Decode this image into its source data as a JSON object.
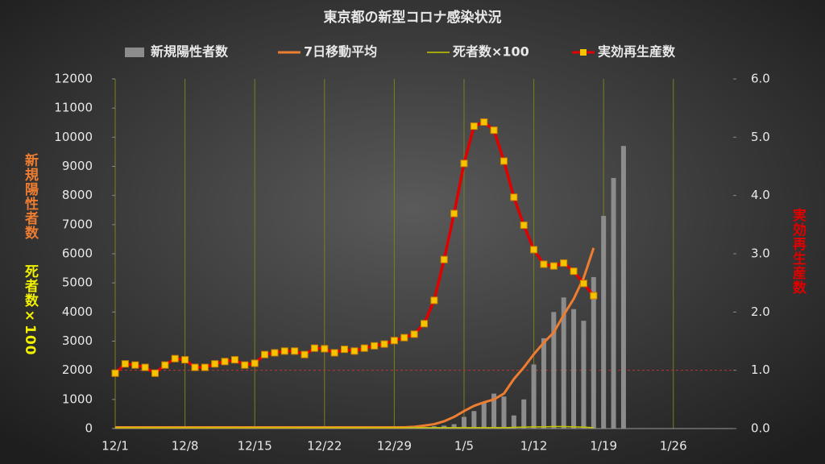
{
  "chart_data": {
    "type": "combo",
    "title": "東京都の新型コロナ感染状況",
    "y_label": "新規陽性者数",
    "y_label_2": "死者数×100",
    "y2_label": "実効再生産数",
    "categories": [
      "12/1",
      null,
      null,
      null,
      null,
      null,
      null,
      "12/8",
      null,
      null,
      null,
      null,
      null,
      null,
      "12/15",
      null,
      null,
      null,
      null,
      null,
      null,
      "12/22",
      null,
      null,
      null,
      null,
      null,
      null,
      "12/29",
      null,
      null,
      null,
      null,
      null,
      null,
      "1/5",
      null,
      null,
      null,
      null,
      null,
      null,
      "1/12",
      null,
      null,
      null,
      null,
      null,
      null,
      "1/19",
      null,
      null,
      null,
      null,
      null,
      null,
      "1/26",
      null,
      null,
      null,
      null,
      null
    ],
    "ylim": [
      0,
      12000
    ],
    "yticks": [
      0,
      1000,
      2000,
      3000,
      4000,
      5000,
      6000,
      7000,
      8000,
      9000,
      10000,
      11000,
      12000
    ],
    "y2lim": [
      0,
      6
    ],
    "y2ticks": [
      {
        "value": 0,
        "label": "0.0"
      },
      {
        "value": 1,
        "label": "1.0"
      },
      {
        "value": 2,
        "label": "2.0"
      },
      {
        "value": 3,
        "label": "3.0"
      },
      {
        "value": 4,
        "label": "4.0"
      },
      {
        "value": 5,
        "label": "5.0"
      },
      {
        "value": 6,
        "label": "6.0"
      }
    ],
    "y2_reference": 1,
    "grid": true,
    "series": [
      {
        "name": "新規陽性者数",
        "type": "bar",
        "color": "#8c8c8c",
        "values": [
          20,
          20,
          20,
          20,
          20,
          20,
          20,
          20,
          20,
          20,
          20,
          20,
          20,
          20,
          20,
          20,
          20,
          20,
          20,
          20,
          20,
          20,
          20,
          20,
          20,
          20,
          20,
          20,
          20,
          20,
          30,
          50,
          80,
          100,
          150,
          400,
          600,
          900,
          1200,
          1100,
          450,
          1000,
          2200,
          3100,
          4000,
          4500,
          4100,
          3700,
          5200,
          7300,
          8600,
          9700,
          null,
          null,
          null,
          null,
          null,
          null,
          null,
          null,
          null,
          null
        ]
      },
      {
        "name": "7日移動平均",
        "type": "line",
        "color": "#ed7d31",
        "values": [
          40,
          40,
          40,
          40,
          40,
          40,
          40,
          40,
          40,
          40,
          40,
          40,
          40,
          40,
          40,
          40,
          40,
          40,
          40,
          40,
          40,
          40,
          40,
          40,
          40,
          40,
          40,
          40,
          40,
          40,
          60,
          100,
          150,
          250,
          400,
          600,
          780,
          900,
          1000,
          1200,
          1700,
          2100,
          2550,
          2950,
          3300,
          3900,
          4450,
          5170,
          6200,
          null,
          null,
          null,
          null,
          null,
          null,
          null,
          null,
          null,
          null,
          null,
          null,
          null
        ]
      },
      {
        "name": "死者数×100",
        "type": "line",
        "color": "#c8c800",
        "values": [
          30,
          30,
          30,
          30,
          30,
          30,
          30,
          30,
          30,
          30,
          30,
          30,
          30,
          30,
          30,
          30,
          30,
          30,
          30,
          30,
          30,
          30,
          30,
          30,
          30,
          30,
          30,
          30,
          30,
          30,
          30,
          30,
          30,
          30,
          30,
          30,
          30,
          30,
          30,
          30,
          40,
          50,
          60,
          60,
          70,
          70,
          60,
          50,
          30,
          null,
          null,
          null,
          null,
          null,
          null,
          null,
          null,
          null,
          null,
          null,
          null,
          null
        ]
      },
      {
        "name": "実効再生産数",
        "type": "marker-line",
        "axis": "y2",
        "color": "#e00000",
        "marker_color": "#f5c400",
        "values": [
          0.95,
          1.11,
          1.09,
          1.05,
          0.95,
          1.09,
          1.2,
          1.18,
          1.05,
          1.05,
          1.11,
          1.15,
          1.18,
          1.09,
          1.12,
          1.27,
          1.3,
          1.33,
          1.33,
          1.27,
          1.38,
          1.37,
          1.3,
          1.36,
          1.33,
          1.38,
          1.42,
          1.45,
          1.51,
          1.56,
          1.62,
          1.8,
          2.2,
          2.9,
          3.69,
          4.55,
          5.19,
          5.26,
          5.12,
          4.59,
          3.97,
          3.49,
          3.07,
          2.82,
          2.79,
          2.84,
          2.7,
          2.49,
          2.28,
          null,
          null,
          null,
          null,
          null,
          null,
          null,
          null,
          null,
          null,
          null,
          null,
          null
        ]
      }
    ]
  }
}
